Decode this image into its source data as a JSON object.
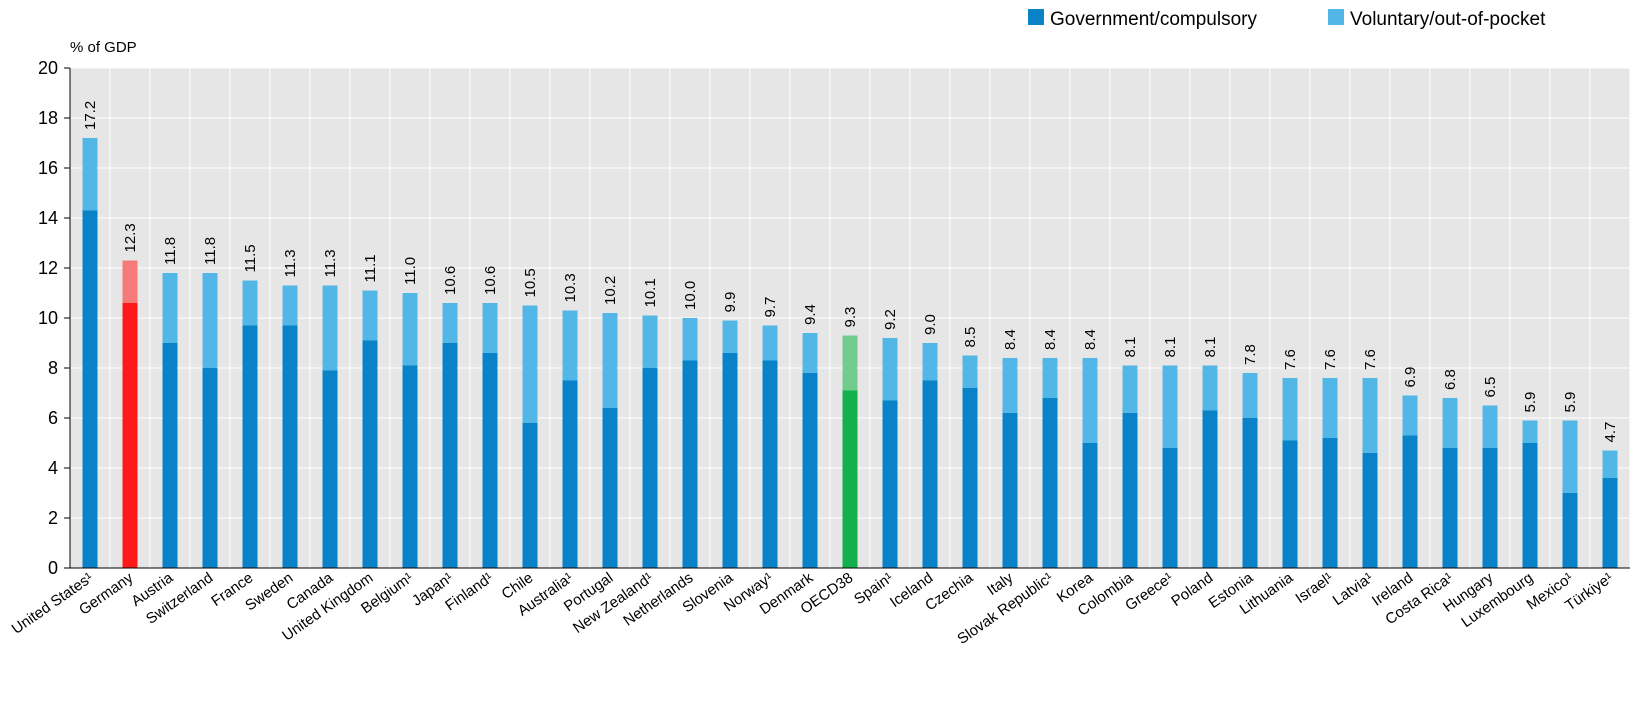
{
  "chart_data": {
    "type": "bar",
    "stacked": true,
    "unit_label": "% of GDP",
    "ylim": [
      0,
      20
    ],
    "yticks": [
      0,
      2,
      4,
      6,
      8,
      10,
      12,
      14,
      16,
      18,
      20
    ],
    "grid": true,
    "legend_position": "top-right",
    "categories": [
      "United States¹",
      "Germany",
      "Austria",
      "Switzerland",
      "France",
      "Sweden",
      "Canada",
      "United Kingdom",
      "Belgium¹",
      "Japan¹",
      "Finland¹",
      "Chile",
      "Australia¹",
      "Portugal",
      "New Zealand¹",
      "Netherlands",
      "Slovenia",
      "Norway¹",
      "Denmark",
      "OECD38",
      "Spain¹",
      "Iceland",
      "Czechia",
      "Italy",
      "Slovak Republic¹",
      "Korea",
      "Colombia",
      "Greece¹",
      "Poland",
      "Estonia",
      "Lithuania",
      "Israel¹",
      "Latvia¹",
      "Ireland",
      "Costa Rica¹",
      "Hungary",
      "Luxembourg",
      "Mexico¹",
      "Türkiye¹"
    ],
    "series": [
      {
        "name": "Government/compulsory",
        "values": [
          14.3,
          10.6,
          9.0,
          8.0,
          9.7,
          9.7,
          7.9,
          9.1,
          8.1,
          9.0,
          8.6,
          5.8,
          7.5,
          6.4,
          8.0,
          8.3,
          8.6,
          8.3,
          7.8,
          7.1,
          6.7,
          7.5,
          7.2,
          6.2,
          6.8,
          5.0,
          6.2,
          4.8,
          6.3,
          6.0,
          5.1,
          5.2,
          4.6,
          5.3,
          4.8,
          4.8,
          5.0,
          3.0,
          3.6
        ]
      },
      {
        "name": "Voluntary/out-of-pocket",
        "values": [
          2.9,
          1.7,
          2.8,
          3.8,
          1.8,
          1.6,
          3.4,
          2.0,
          2.9,
          1.6,
          2.0,
          4.7,
          2.8,
          3.8,
          2.1,
          1.7,
          1.3,
          1.4,
          1.6,
          2.2,
          2.5,
          1.5,
          1.3,
          2.2,
          1.6,
          3.4,
          1.9,
          3.3,
          1.8,
          1.8,
          2.5,
          2.4,
          3.0,
          1.6,
          2.0,
          1.7,
          0.9,
          2.9,
          1.1
        ]
      }
    ],
    "totals": [
      "17.2",
      "12.3",
      "11.8",
      "11.8",
      "11.5",
      "11.3",
      "11.3",
      "11.1",
      "11.0",
      "10.6",
      "10.6",
      "10.5",
      "10.3",
      "10.2",
      "10.1",
      "10.0",
      "9.9",
      "9.7",
      "9.4",
      "9.3",
      "9.2",
      "9.0",
      "8.5",
      "8.4",
      "8.4",
      "8.4",
      "8.1",
      "8.1",
      "8.1",
      "7.8",
      "7.6",
      "7.6",
      "7.6",
      "6.9",
      "6.8",
      "6.5",
      "5.9",
      "5.9",
      "4.7"
    ],
    "colors": {
      "government": "#0a82c8",
      "voluntary": "#52b6e6",
      "germany_government": "#ff1a1a",
      "germany_voluntary": "#f57a78",
      "oecd_government": "#14b04e",
      "oecd_voluntary": "#72cc8e",
      "plot_background": "#e6e6e6",
      "grid": "#ffffff"
    },
    "highlight": {
      "Germany": "red",
      "OECD38": "green"
    }
  }
}
